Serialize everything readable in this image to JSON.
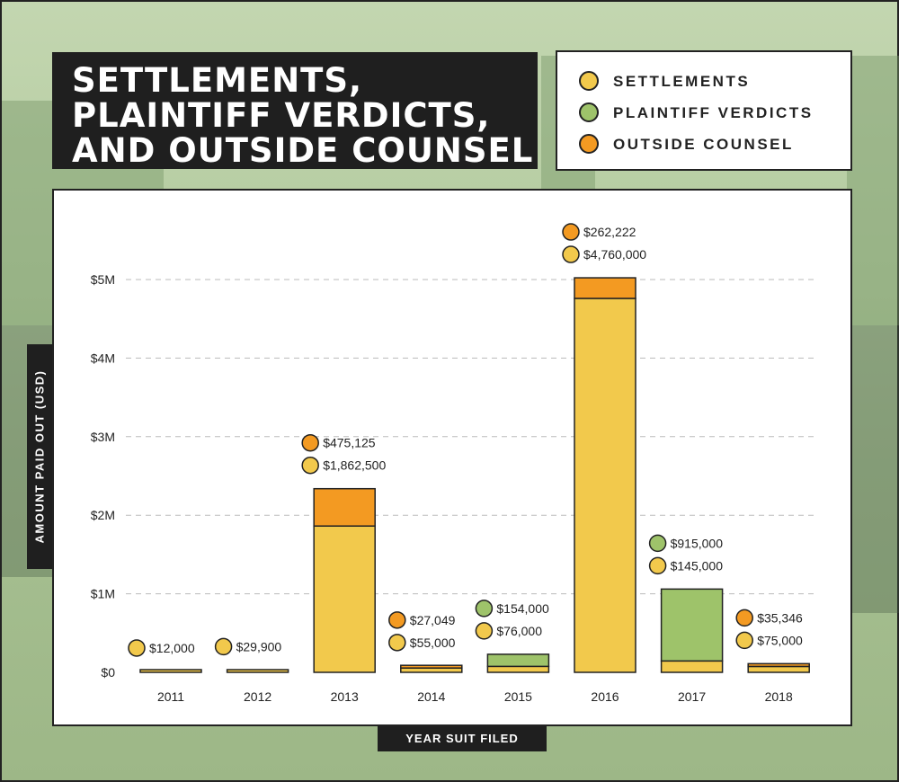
{
  "title": {
    "lines": [
      "SETTLEMENTS,",
      "PLAINTIFF VERDICTS,",
      "AND OUTSIDE COUNSEL"
    ]
  },
  "legend": {
    "items": [
      {
        "label": "SETTLEMENTS",
        "color": "#f2c94c"
      },
      {
        "label": "PLAINTIFF VERDICTS",
        "color": "#9ec36a"
      },
      {
        "label": "OUTSIDE COUNSEL",
        "color": "#f39a22"
      }
    ]
  },
  "axes": {
    "ylabel": "AMOUNT PAID OUT (USD)",
    "xlabel": "YEAR SUIT FILED"
  },
  "colors": {
    "settlements": "#f2c94c",
    "plaintiff_verdicts": "#9ec36a",
    "outside_counsel": "#f39a22",
    "outline": "#222222",
    "grid": "#bbbbbb"
  },
  "chart_data": {
    "type": "bar",
    "stacked": true,
    "title": "SETTLEMENTS, PLAINTIFF VERDICTS, AND OUTSIDE COUNSEL",
    "xlabel": "YEAR SUIT FILED",
    "ylabel": "AMOUNT PAID OUT (USD)",
    "ylim": [
      0,
      5000000
    ],
    "yticks": [
      0,
      1000000,
      2000000,
      3000000,
      4000000,
      5000000
    ],
    "ytick_labels": [
      "$0",
      "$1M",
      "$2M",
      "$3M",
      "$4M",
      "$5M"
    ],
    "grid": true,
    "legend_position": "top-right",
    "categories": [
      "2011",
      "2012",
      "2013",
      "2014",
      "2015",
      "2016",
      "2017",
      "2018"
    ],
    "series": [
      {
        "name": "SETTLEMENTS",
        "color": "#f2c94c",
        "values": [
          12000,
          29900,
          1862500,
          55000,
          76000,
          4760000,
          145000,
          75000
        ],
        "labels": [
          "$12,000",
          "$29,900",
          "$1,862,500",
          "$55,000",
          "$76,000",
          "$4,760,000",
          "$145,000",
          "$75,000"
        ]
      },
      {
        "name": "PLAINTIFF VERDICTS",
        "color": "#9ec36a",
        "values": [
          0,
          0,
          0,
          0,
          154000,
          0,
          915000,
          0
        ],
        "labels": [
          "",
          "",
          "",
          "",
          "$154,000",
          "",
          "$915,000",
          ""
        ]
      },
      {
        "name": "OUTSIDE COUNSEL",
        "color": "#f39a22",
        "values": [
          0,
          0,
          475125,
          27049,
          0,
          262222,
          0,
          35346
        ],
        "labels": [
          "",
          "",
          "$475,125",
          "$27,049",
          "",
          "$262,222",
          "",
          "$35,346"
        ]
      }
    ]
  }
}
